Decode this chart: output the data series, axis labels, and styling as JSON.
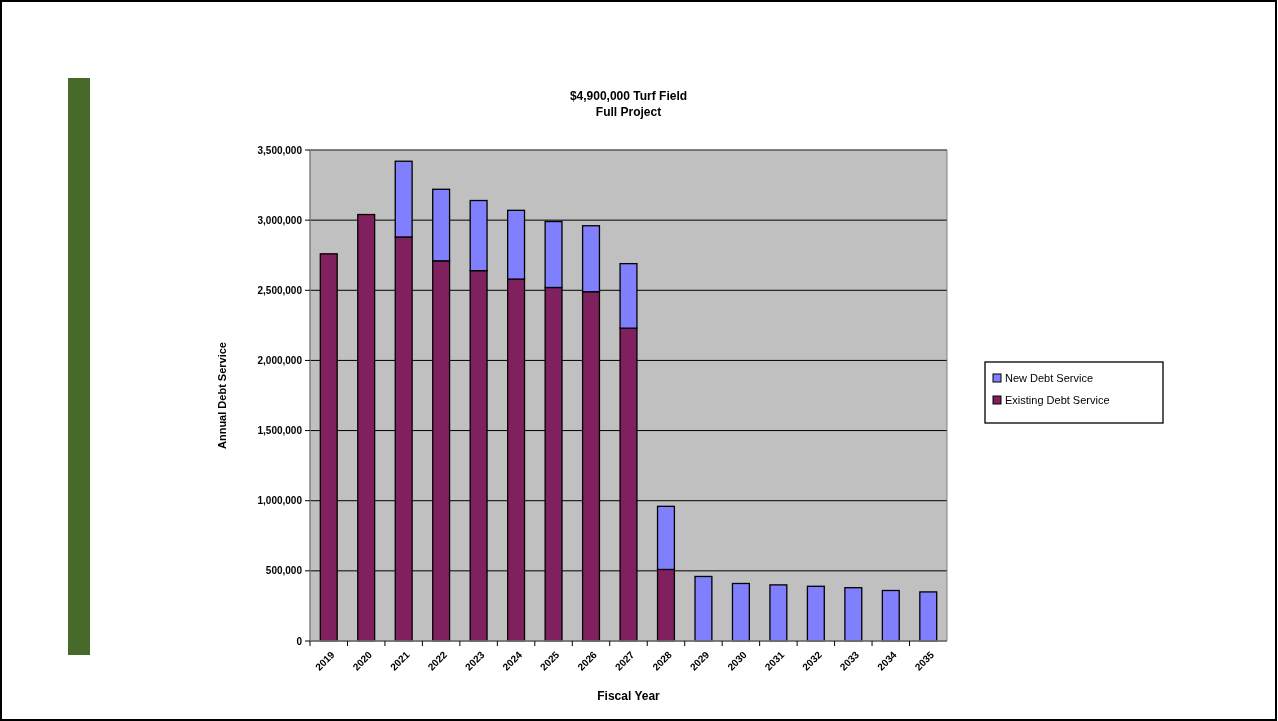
{
  "chart_data": {
    "type": "bar",
    "title": "$4,900,000 Turf Field\nFull Project",
    "xlabel": "Fiscal Year",
    "ylabel": "Annual Debt Service",
    "categories": [
      "2019",
      "2020",
      "2021",
      "2022",
      "2023",
      "2024",
      "2025",
      "2026",
      "2027",
      "2028",
      "2029",
      "2030",
      "2031",
      "2032",
      "2033",
      "2034",
      "2035"
    ],
    "stacked": true,
    "series": [
      {
        "name": "Existing Debt Service",
        "color": "#80205f",
        "values": [
          2760000,
          3040000,
          2880000,
          2710000,
          2640000,
          2580000,
          2520000,
          2490000,
          2230000,
          510000,
          0,
          0,
          0,
          0,
          0,
          0,
          0
        ]
      },
      {
        "name": "New Debt Service",
        "color": "#8080ff",
        "values": [
          0,
          0,
          540000,
          510000,
          500000,
          490000,
          470000,
          470000,
          460000,
          450000,
          460000,
          410000,
          400000,
          390000,
          380000,
          360000,
          350000
        ]
      }
    ],
    "ylim": [
      0,
      3500000
    ],
    "yticks": [
      {
        "value": 0,
        "label": "0"
      },
      {
        "value": 500000,
        "label": "500,000"
      },
      {
        "value": 1000000,
        "label": "1,000,000"
      },
      {
        "value": 1500000,
        "label": "1,500,000"
      },
      {
        "value": 2000000,
        "label": "2,000,000"
      },
      {
        "value": 2500000,
        "label": "2,500,000"
      },
      {
        "value": 3000000,
        "label": "3,000,000"
      },
      {
        "value": 3500000,
        "label": "3,500,000"
      }
    ],
    "grid": "y",
    "legend": "right"
  }
}
